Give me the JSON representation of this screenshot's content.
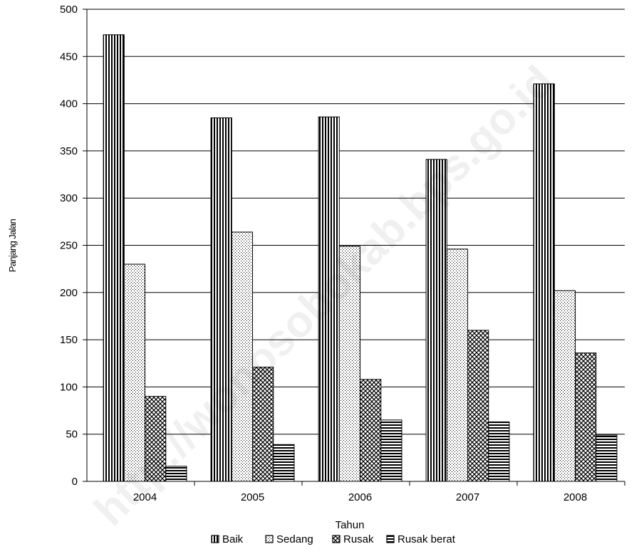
{
  "watermark": "http://wonosobokab.bps.go.id",
  "chart_data": {
    "type": "bar",
    "title": "",
    "xlabel": "Tahun",
    "ylabel": "Panjang Jalan",
    "ylim": [
      0,
      500
    ],
    "yticks": [
      0,
      50,
      100,
      150,
      200,
      250,
      300,
      350,
      400,
      450,
      500
    ],
    "grid": true,
    "legend_position": "bottom",
    "categories": [
      "2004",
      "2005",
      "2006",
      "2007",
      "2008"
    ],
    "series": [
      {
        "name": "Baik",
        "pattern": "vertical-stripes",
        "values": [
          473,
          385,
          386,
          341,
          421
        ]
      },
      {
        "name": "Sedang",
        "pattern": "dots",
        "values": [
          230,
          264,
          249,
          246,
          202
        ]
      },
      {
        "name": "Rusak",
        "pattern": "crosshatch",
        "values": [
          90,
          121,
          108,
          160,
          136
        ]
      },
      {
        "name": "Rusak berat",
        "pattern": "horizontal-stripes",
        "values": [
          16,
          39,
          65,
          63,
          49
        ]
      }
    ]
  }
}
